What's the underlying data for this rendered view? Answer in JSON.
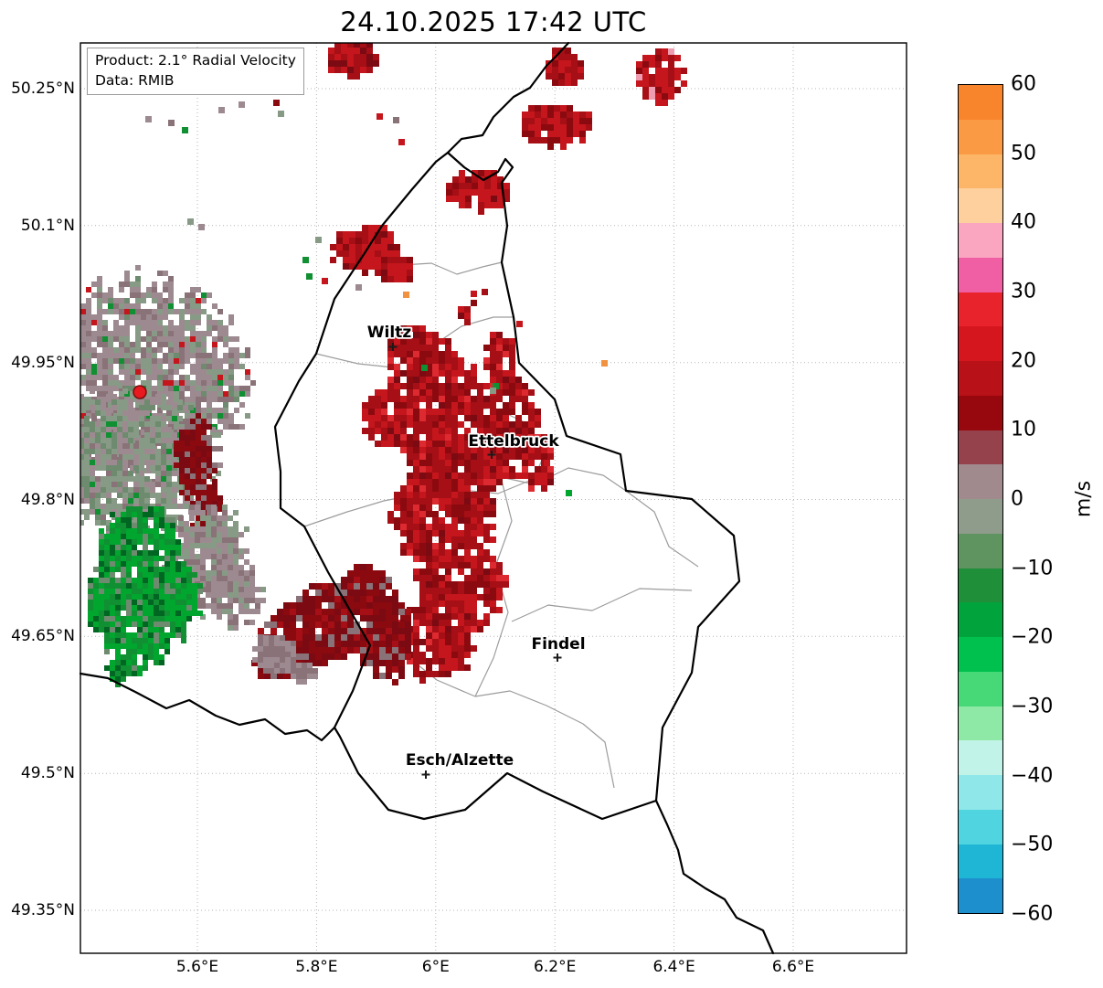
{
  "title": "24.10.2025 17:42 UTC",
  "info_box": {
    "product": "Product: 2.1° Radial Velocity",
    "source": "Data: RMIB"
  },
  "map": {
    "y_ticks": [
      "50.25°N",
      "50.1°N",
      "49.95°N",
      "49.8°N",
      "49.65°N",
      "49.5°N",
      "49.35°N"
    ],
    "x_ticks": [
      "5.6°E",
      "5.8°E",
      "6°E",
      "6.2°E",
      "6.4°E",
      "6.6°E"
    ],
    "cities": [
      {
        "name": "Wiltz"
      },
      {
        "name": "Ettelbruck"
      },
      {
        "name": "Findel"
      },
      {
        "name": "Esch/Alzette"
      }
    ]
  },
  "colorbar": {
    "unit": "m/s",
    "tick_labels": [
      "60",
      "50",
      "40",
      "30",
      "20",
      "10",
      "0",
      "−10",
      "−20",
      "−30",
      "−40",
      "−50",
      "−60"
    ],
    "segment_colors_top_to_bottom": [
      "#f8842c",
      "#fb9a45",
      "#fdb567",
      "#fdd09e",
      "#fba6c1",
      "#f05fa3",
      "#e8232b",
      "#d5161f",
      "#b91118",
      "#97070e",
      "#96424c",
      "#a08a8e",
      "#8f9c8c",
      "#5f9360",
      "#1f8f3a",
      "#00a33c",
      "#00c04e",
      "#47d878",
      "#8fe9a6",
      "#c2f3e8",
      "#8fe7ea",
      "#4fd4e0",
      "#1fb6d6",
      "#1d8fcc"
    ]
  },
  "radar_palette": {
    "mauve": "#9d8a90",
    "mauve_dark": "#897278",
    "graygreen": "#879a85",
    "graygreen_dark": "#6e8a6f",
    "green_bright": "#00a62e",
    "green": "#118f33",
    "green_deep": "#006622",
    "red": "#c4161c",
    "red_dark": "#a50f15",
    "red_deep": "#8b0a10",
    "maroon": "#7c0a12",
    "red_bright": "#dd2a30",
    "pink": "#f09cb0",
    "orange": "#f0923f"
  },
  "radar_marker_color": "#e8191f"
}
